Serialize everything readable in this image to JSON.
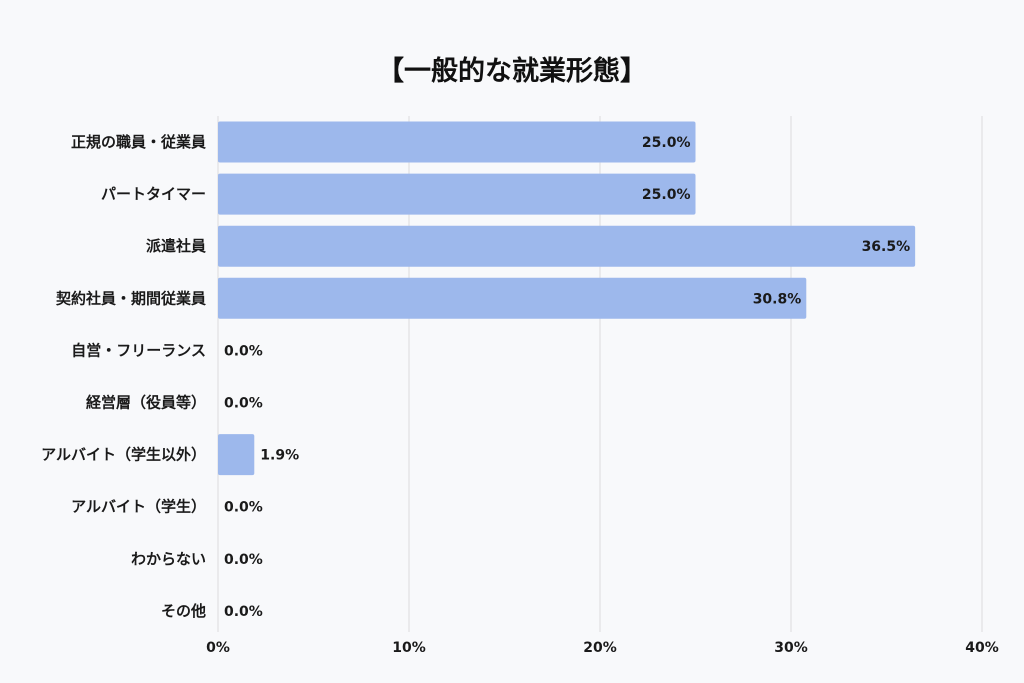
{
  "chart_data": {
    "type": "bar",
    "orientation": "horizontal",
    "title": "【一般的な就業形態】",
    "categories": [
      "正規の職員・従業員",
      "パートタイマー",
      "派遣社員",
      "契約社員・期間従業員",
      "自営・フリーランス",
      "経営層（役員等）",
      "アルバイト（学生以外）",
      "アルバイト（学生）",
      "わからない",
      "その他"
    ],
    "values": [
      25.0,
      25.0,
      36.5,
      30.8,
      0.0,
      0.0,
      1.9,
      0.0,
      0.0,
      0.0
    ],
    "value_labels": [
      "25.0%",
      "25.0%",
      "36.5%",
      "30.8%",
      "0.0%",
      "0.0%",
      "1.9%",
      "0.0%",
      "0.0%",
      "0.0%"
    ],
    "xlim": [
      0,
      40
    ],
    "xticks": [
      0,
      10,
      20,
      30,
      40
    ],
    "xtick_labels": [
      "0%",
      "10%",
      "20%",
      "30%",
      "40%"
    ],
    "xlabel": "",
    "ylabel": "",
    "grid": true,
    "legend": "none",
    "colors": {
      "bar": "#9db8ec",
      "grid": "#dcdcdc",
      "text": "#1a1a1a",
      "background": "#f8f9fb"
    }
  }
}
